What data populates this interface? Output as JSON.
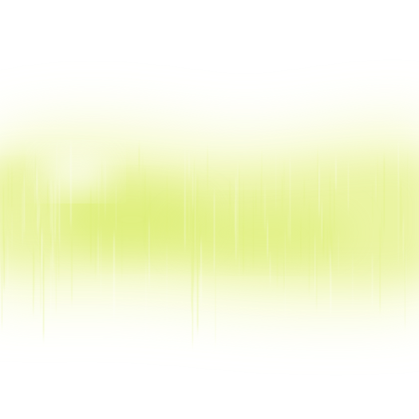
{
  "image": {
    "background_color": "#ffffff",
    "band_color_light": "#f4f9c4",
    "band_color_mid": "#e8f39a",
    "band_color_strong": "#dcee72",
    "streak_color": "#ffffff"
  }
}
